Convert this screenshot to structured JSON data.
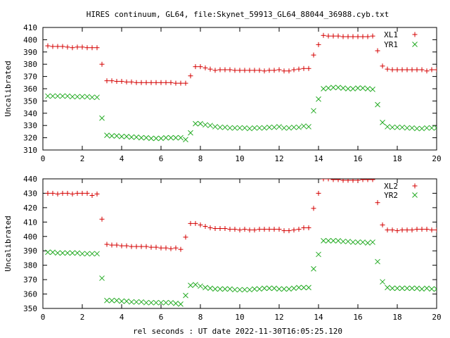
{
  "title": "HIRES continuum, GL64, file:Skynet_59913_GL64_88044_36988.cyb.txt",
  "xlabel": "rel seconds : UT date 2022-11-30T16:05:25.120",
  "colors": {
    "red": "#d40000",
    "green": "#22aa22",
    "axis": "#000000"
  },
  "chart_data": [
    {
      "type": "scatter",
      "ylabel": "Uncalibrated",
      "xlim": [
        0,
        20
      ],
      "ylim": [
        310,
        410
      ],
      "xticks": [
        0,
        2,
        4,
        6,
        8,
        10,
        12,
        14,
        16,
        18,
        20
      ],
      "yticks": [
        310,
        320,
        330,
        340,
        350,
        360,
        370,
        380,
        390,
        400,
        410
      ],
      "legend_position": "top-right",
      "x": [
        0.25,
        0.5,
        0.75,
        1.0,
        1.25,
        1.5,
        1.75,
        2.0,
        2.25,
        2.5,
        2.75,
        3.0,
        3.25,
        3.5,
        3.75,
        4.0,
        4.25,
        4.5,
        4.75,
        5.0,
        5.25,
        5.5,
        5.75,
        6.0,
        6.25,
        6.5,
        6.75,
        7.0,
        7.25,
        7.5,
        7.75,
        8.0,
        8.25,
        8.5,
        8.75,
        9.0,
        9.25,
        9.5,
        9.75,
        10.0,
        10.25,
        10.5,
        10.75,
        11.0,
        11.25,
        11.5,
        11.75,
        12.0,
        12.25,
        12.5,
        12.75,
        13.0,
        13.25,
        13.5,
        13.75,
        14.0,
        14.25,
        14.5,
        14.75,
        15.0,
        15.25,
        15.5,
        15.75,
        16.0,
        16.25,
        16.5,
        16.75,
        17.0,
        17.25,
        17.5,
        17.75,
        18.0,
        18.25,
        18.5,
        18.75,
        19.0,
        19.25,
        19.5,
        19.75,
        20.0
      ],
      "series": [
        {
          "name": "XL1",
          "marker": "plus",
          "color": "#d40000",
          "values": [
            395,
            394.5,
            394.5,
            394.5,
            394,
            393.5,
            394,
            394,
            393.5,
            393.5,
            393.5,
            380,
            366.5,
            366.5,
            366,
            366,
            365.5,
            365.5,
            365,
            365,
            365,
            365,
            365,
            365,
            365,
            365,
            364.5,
            364.5,
            364.5,
            370.5,
            378,
            378,
            377,
            376,
            375,
            375.5,
            375.5,
            375.5,
            375,
            375,
            375,
            375,
            375,
            375,
            374.5,
            375,
            375,
            375.5,
            374.5,
            374.5,
            375.5,
            376,
            376.5,
            376.5,
            387.5,
            396,
            403.5,
            403,
            403,
            403,
            402.5,
            402.5,
            402.5,
            402.5,
            402.5,
            402.5,
            403,
            391,
            378.5,
            376,
            375.5,
            375.5,
            375.5,
            375.5,
            375.5,
            375.5,
            375.5,
            374.5,
            375.5,
            375.5
          ]
        },
        {
          "name": "YR1",
          "marker": "cross",
          "color": "#22aa22",
          "values": [
            354,
            354,
            354,
            354,
            354,
            353.5,
            353.5,
            353.5,
            353.5,
            353,
            353,
            336,
            322,
            321.5,
            321.5,
            321,
            321,
            320.5,
            320.5,
            320,
            320,
            319.5,
            319.5,
            319.5,
            320,
            320,
            320,
            320,
            318.5,
            324,
            331.5,
            331.5,
            330.5,
            330,
            329,
            328.5,
            328.5,
            328,
            328,
            328,
            328,
            327.5,
            328,
            328,
            328,
            328.5,
            328.5,
            329,
            328,
            328,
            328.5,
            328.5,
            329.5,
            329,
            342,
            351.5,
            360,
            360.5,
            361,
            361,
            360.5,
            360,
            360,
            360.5,
            360.5,
            360,
            359.5,
            347,
            332.5,
            329,
            328.5,
            328.5,
            328.5,
            328,
            328,
            327.5,
            327.5,
            328,
            328,
            328
          ]
        }
      ]
    },
    {
      "type": "scatter",
      "ylabel": "Uncalibrated",
      "xlim": [
        0,
        20
      ],
      "ylim": [
        350,
        440
      ],
      "xticks": [
        0,
        2,
        4,
        6,
        8,
        10,
        12,
        14,
        16,
        18,
        20
      ],
      "yticks": [
        350,
        360,
        370,
        380,
        390,
        400,
        410,
        420,
        430,
        440
      ],
      "legend_position": "top-right",
      "x": [
        0.25,
        0.5,
        0.75,
        1.0,
        1.25,
        1.5,
        1.75,
        2.0,
        2.25,
        2.5,
        2.75,
        3.0,
        3.25,
        3.5,
        3.75,
        4.0,
        4.25,
        4.5,
        4.75,
        5.0,
        5.25,
        5.5,
        5.75,
        6.0,
        6.25,
        6.5,
        6.75,
        7.0,
        7.25,
        7.5,
        7.75,
        8.0,
        8.25,
        8.5,
        8.75,
        9.0,
        9.25,
        9.5,
        9.75,
        10.0,
        10.25,
        10.5,
        10.75,
        11.0,
        11.25,
        11.5,
        11.75,
        12.0,
        12.25,
        12.5,
        12.75,
        13.0,
        13.25,
        13.5,
        13.75,
        14.0,
        14.25,
        14.5,
        14.75,
        15.0,
        15.25,
        15.5,
        15.75,
        16.0,
        16.25,
        16.5,
        16.75,
        17.0,
        17.25,
        17.5,
        17.75,
        18.0,
        18.25,
        18.5,
        18.75,
        19.0,
        19.25,
        19.5,
        19.75,
        20.0
      ],
      "series": [
        {
          "name": "XL2",
          "marker": "plus",
          "color": "#d40000",
          "values": [
            430,
            430,
            429.5,
            430,
            430,
            429.5,
            430,
            430,
            430,
            428.5,
            429.5,
            412,
            394.5,
            394,
            394,
            393.5,
            393.5,
            393,
            393,
            393,
            393,
            392.5,
            392.5,
            392,
            392,
            391.5,
            392,
            391,
            399.5,
            409,
            409,
            408,
            407,
            406,
            405.5,
            405.5,
            405.5,
            405,
            405,
            404.5,
            405,
            404.5,
            404.5,
            405,
            405,
            405,
            405,
            405,
            404,
            404,
            404.5,
            405,
            406,
            406,
            419.5,
            430,
            440,
            440,
            439.5,
            439.5,
            439,
            439,
            439,
            439,
            439.5,
            439.5,
            439.5,
            423.5,
            408,
            404.5,
            404.5,
            404,
            404.5,
            404.5,
            404.5,
            405,
            405,
            405,
            404.5,
            404.5
          ]
        },
        {
          "name": "YR2",
          "marker": "cross",
          "color": "#22aa22",
          "values": [
            389,
            389,
            388.5,
            388.5,
            388.5,
            388.5,
            388.5,
            388,
            388,
            388,
            388,
            371,
            355.5,
            355.5,
            355.5,
            355,
            355,
            354.5,
            354.5,
            354.5,
            354,
            354,
            354,
            354,
            354,
            354,
            353.5,
            353,
            359,
            366,
            366.5,
            365.5,
            364.5,
            364,
            363.5,
            363.5,
            363.5,
            363.5,
            363,
            363,
            363,
            363,
            363.5,
            363.5,
            364,
            364,
            364,
            363.5,
            363.5,
            363.5,
            364,
            364.5,
            364.5,
            364.5,
            377.5,
            387.5,
            397,
            397,
            397,
            397,
            396.5,
            396.5,
            396,
            396,
            396,
            395.5,
            396,
            382.5,
            368.5,
            364.5,
            364,
            364,
            364,
            364,
            364,
            364,
            363.5,
            364,
            363.5,
            363.5
          ]
        }
      ]
    }
  ]
}
